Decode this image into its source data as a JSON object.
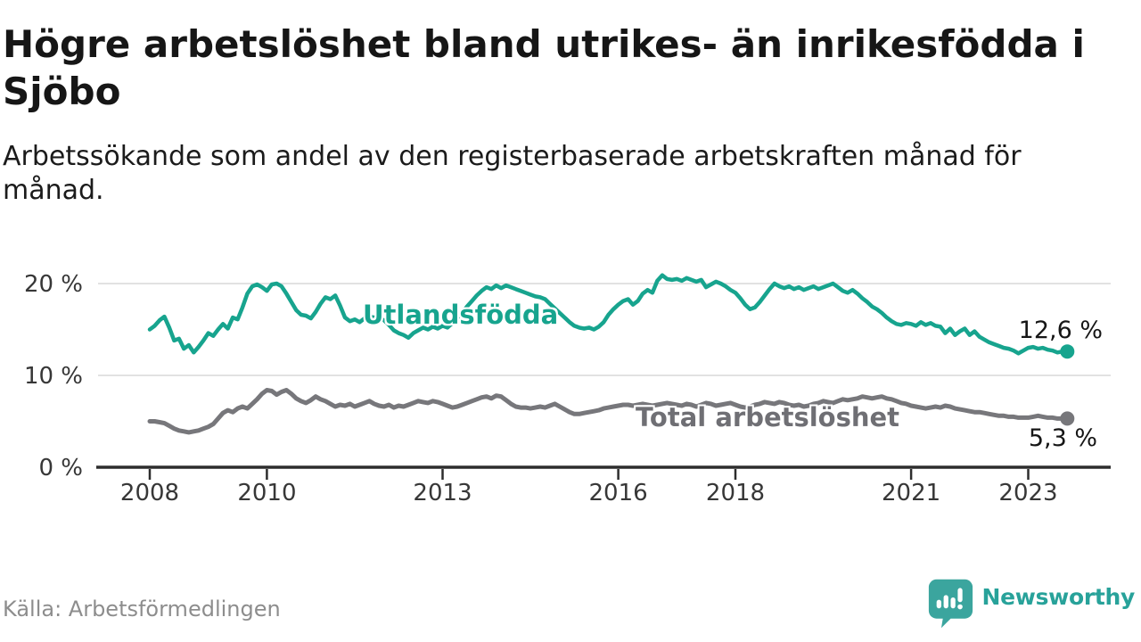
{
  "header": {
    "title": "Högre arbetslöshet bland utrikes- än inrikesfödda i Sjöbo",
    "subtitle": "Arbetssökande som andel av den registerbaserade arbetskraften månad för månad."
  },
  "footer": {
    "source": "Källa: Arbetsförmedlingen",
    "brand": "Newsworthy"
  },
  "colors": {
    "foreign_born_line": "#17a48e",
    "total_line": "#77777b",
    "grid": "#d9d9d9",
    "axis": "#2d2d2d",
    "brand_teal": "#28a29a",
    "logo_bubble": "#3ba59e"
  },
  "chart_data": {
    "type": "line",
    "title": "Högre arbetslöshet bland utrikes- än inrikesfödda i Sjöbo",
    "subtitle": "Arbetssökande som andel av den registerbaserade arbetskraften månad för månad.",
    "unit": "%",
    "frequency": "monthly",
    "grid": "horizontal",
    "ylim": [
      0,
      22
    ],
    "x_axis": {
      "start_year": 2008,
      "start_month": 1,
      "end": "2023-09",
      "ticks": [
        {
          "year": 2008,
          "label": "2008"
        },
        {
          "year": 2010,
          "label": "2010"
        },
        {
          "year": 2013,
          "label": "2013"
        },
        {
          "year": 2016,
          "label": "2016"
        },
        {
          "year": 2018,
          "label": "2018"
        },
        {
          "year": 2021,
          "label": "2021"
        },
        {
          "year": 2023,
          "label": "2023"
        }
      ]
    },
    "y_axis": {
      "ticks": [
        {
          "value": 20,
          "label": "20 %"
        },
        {
          "value": 10,
          "label": "10 %"
        },
        {
          "value": 0,
          "label": "0 %"
        }
      ]
    },
    "series": [
      {
        "id": "utlandsfodda",
        "name": "Utlandsfödda",
        "color": "#17a48e",
        "end_label": "12,6 %",
        "end_value": 12.6,
        "values": [
          15.0,
          15.4,
          16.0,
          16.4,
          15.2,
          13.8,
          14.0,
          12.9,
          13.3,
          12.5,
          13.1,
          13.8,
          14.6,
          14.3,
          15.0,
          15.6,
          15.1,
          16.3,
          16.1,
          17.4,
          18.9,
          19.7,
          19.9,
          19.6,
          19.2,
          19.9,
          20.0,
          19.7,
          18.9,
          18.0,
          17.1,
          16.6,
          16.5,
          16.2,
          16.9,
          17.8,
          18.5,
          18.3,
          18.7,
          17.6,
          16.3,
          15.9,
          16.1,
          15.8,
          16.2,
          16.4,
          16.3,
          16.2,
          16.0,
          15.5,
          14.9,
          14.6,
          14.4,
          14.1,
          14.6,
          14.9,
          15.2,
          15.0,
          15.3,
          15.1,
          15.4,
          15.2,
          15.7,
          16.2,
          16.8,
          17.5,
          18.1,
          18.7,
          19.2,
          19.6,
          19.4,
          19.8,
          19.5,
          19.8,
          19.6,
          19.4,
          19.2,
          19.0,
          18.8,
          18.6,
          18.5,
          18.3,
          17.8,
          17.3,
          16.8,
          16.3,
          15.8,
          15.4,
          15.2,
          15.1,
          15.2,
          15.0,
          15.3,
          15.8,
          16.6,
          17.2,
          17.7,
          18.1,
          18.3,
          17.7,
          18.1,
          18.9,
          19.3,
          19.0,
          20.3,
          20.9,
          20.5,
          20.4,
          20.5,
          20.3,
          20.6,
          20.4,
          20.2,
          20.4,
          19.6,
          19.9,
          20.2,
          20.0,
          19.7,
          19.3,
          19.0,
          18.4,
          17.7,
          17.2,
          17.4,
          18.0,
          18.7,
          19.4,
          20.0,
          19.7,
          19.5,
          19.7,
          19.4,
          19.6,
          19.3,
          19.5,
          19.7,
          19.4,
          19.6,
          19.8,
          20.0,
          19.6,
          19.2,
          19.0,
          19.3,
          18.9,
          18.4,
          18.0,
          17.5,
          17.2,
          16.8,
          16.3,
          15.9,
          15.6,
          15.5,
          15.7,
          15.6,
          15.4,
          15.8,
          15.5,
          15.7,
          15.4,
          15.3,
          14.6,
          15.1,
          14.4,
          14.8,
          15.1,
          14.4,
          14.8,
          14.2,
          13.9,
          13.6,
          13.4,
          13.2,
          13.0,
          12.9,
          12.7,
          12.4,
          12.7,
          13.0,
          13.1,
          12.9,
          13.0,
          12.8,
          12.7,
          12.5,
          12.6,
          12.6
        ]
      },
      {
        "id": "total-arbetsloshet",
        "name": "Total arbetslöshet",
        "color": "#77777b",
        "end_label": "5,3 %",
        "end_value": 5.3,
        "values": [
          5.0,
          5.0,
          4.9,
          4.8,
          4.5,
          4.2,
          4.0,
          3.9,
          3.8,
          3.9,
          4.0,
          4.2,
          4.4,
          4.7,
          5.3,
          5.9,
          6.2,
          6.0,
          6.4,
          6.6,
          6.4,
          6.9,
          7.4,
          8.0,
          8.4,
          8.3,
          7.9,
          8.2,
          8.4,
          8.0,
          7.5,
          7.2,
          7.0,
          7.3,
          7.7,
          7.4,
          7.2,
          6.9,
          6.6,
          6.8,
          6.7,
          6.9,
          6.6,
          6.8,
          7.0,
          7.2,
          6.9,
          6.7,
          6.6,
          6.8,
          6.5,
          6.7,
          6.6,
          6.8,
          7.0,
          7.2,
          7.1,
          7.0,
          7.2,
          7.1,
          6.9,
          6.7,
          6.5,
          6.6,
          6.8,
          7.0,
          7.2,
          7.4,
          7.6,
          7.7,
          7.5,
          7.8,
          7.7,
          7.3,
          6.9,
          6.6,
          6.5,
          6.5,
          6.4,
          6.5,
          6.6,
          6.5,
          6.7,
          6.9,
          6.6,
          6.3,
          6.0,
          5.8,
          5.8,
          5.9,
          6.0,
          6.1,
          6.2,
          6.4,
          6.5,
          6.6,
          6.7,
          6.8,
          6.8,
          6.7,
          6.8,
          6.9,
          6.8,
          6.7,
          6.8,
          6.9,
          7.0,
          6.9,
          6.8,
          6.7,
          6.9,
          6.8,
          6.6,
          6.8,
          7.0,
          6.9,
          6.7,
          6.8,
          6.9,
          7.0,
          6.8,
          6.6,
          6.5,
          6.6,
          6.8,
          6.9,
          7.1,
          7.0,
          6.9,
          7.1,
          7.0,
          6.8,
          6.7,
          6.8,
          6.6,
          6.7,
          6.9,
          7.0,
          7.2,
          7.1,
          7.0,
          7.2,
          7.4,
          7.3,
          7.4,
          7.5,
          7.7,
          7.6,
          7.5,
          7.6,
          7.7,
          7.5,
          7.4,
          7.2,
          7.0,
          6.9,
          6.7,
          6.6,
          6.5,
          6.4,
          6.5,
          6.6,
          6.5,
          6.7,
          6.6,
          6.4,
          6.3,
          6.2,
          6.1,
          6.0,
          6.0,
          5.9,
          5.8,
          5.7,
          5.6,
          5.6,
          5.5,
          5.5,
          5.4,
          5.4,
          5.4,
          5.5,
          5.6,
          5.5,
          5.4,
          5.4,
          5.3,
          5.3,
          5.3
        ]
      }
    ]
  }
}
